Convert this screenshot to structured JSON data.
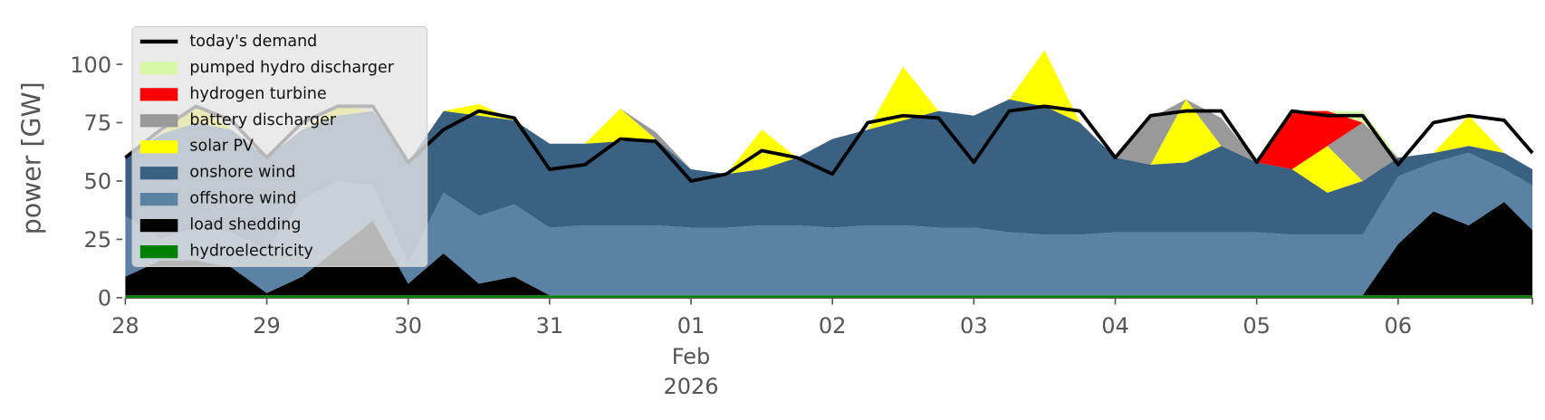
{
  "chart_data": {
    "type": "stacked-area",
    "ylabel": "power [GW]",
    "x": [
      0,
      0.25,
      0.5,
      0.75,
      1,
      1.25,
      1.5,
      1.75,
      2,
      2.25,
      2.5,
      2.75,
      3,
      3.25,
      3.5,
      3.75,
      4,
      4.25,
      4.5,
      4.75,
      5,
      5.25,
      5.5,
      5.75,
      6,
      6.25,
      6.5,
      6.75,
      7,
      7.25,
      7.5,
      7.75,
      8,
      8.25,
      8.5,
      8.75,
      9,
      9.25,
      9.5,
      9.75,
      9.95
    ],
    "xlim": [
      0,
      9.95
    ],
    "xticks": [
      {
        "value": 0,
        "label": "28"
      },
      {
        "value": 1,
        "label": "29"
      },
      {
        "value": 2,
        "label": "30"
      },
      {
        "value": 3,
        "label": "31"
      },
      {
        "value": 4,
        "label": "01"
      },
      {
        "value": 5,
        "label": "02"
      },
      {
        "value": 6,
        "label": "03"
      },
      {
        "value": 7,
        "label": "04"
      },
      {
        "value": 8,
        "label": "05"
      },
      {
        "value": 9,
        "label": "06"
      }
    ],
    "xtick_sublabels": [
      "Feb",
      "2026"
    ],
    "ylim": [
      0,
      118
    ],
    "yticks": [
      0,
      25,
      50,
      75,
      100
    ],
    "legend_loc": "upper left",
    "series": [
      {
        "name": "hydroelectricity",
        "color": "#008000",
        "values": [
          1,
          1,
          1,
          1,
          1,
          1,
          1,
          1,
          1,
          1,
          1,
          1,
          1,
          1,
          1,
          1,
          1,
          1,
          1,
          1,
          1,
          1,
          1,
          1,
          1,
          1,
          1,
          1,
          1,
          1,
          1,
          1,
          1,
          1,
          1,
          1,
          1,
          1,
          1,
          1,
          1
        ]
      },
      {
        "name": "load shedding",
        "color": "#000000",
        "values": [
          8,
          15,
          15,
          12,
          1,
          8,
          20,
          32,
          5,
          18,
          5,
          8,
          0,
          0,
          0,
          0,
          0,
          0,
          0,
          0,
          0,
          0,
          0,
          0,
          0,
          0,
          0,
          0,
          0,
          0,
          0,
          0,
          0,
          0,
          0,
          0,
          22,
          36,
          30,
          40,
          28
        ]
      },
      {
        "name": "offshore wind",
        "color": "#5b82a4",
        "values": [
          26,
          9,
          14,
          15,
          18,
          33,
          29,
          15,
          9,
          26,
          29,
          31,
          29,
          30,
          30,
          30,
          29,
          29,
          30,
          30,
          29,
          30,
          30,
          29,
          29,
          27,
          26,
          26,
          27,
          27,
          27,
          27,
          27,
          26,
          26,
          26,
          29,
          21,
          31,
          14,
          19
        ]
      },
      {
        "name": "onshore wind",
        "color": "#3b6182",
        "values": [
          25,
          45,
          45,
          44,
          40,
          30,
          28,
          32,
          43,
          35,
          43,
          36,
          36,
          35,
          36,
          37,
          25,
          23,
          24,
          29,
          38,
          41,
          45,
          50,
          48,
          57,
          55,
          48,
          32,
          29,
          30,
          37,
          30,
          28,
          18,
          23,
          8,
          4,
          3,
          7,
          7
        ]
      },
      {
        "name": "solar PV",
        "color": "#ffff00",
        "values": [
          0,
          0,
          8,
          0,
          0,
          0,
          4,
          0,
          0,
          0,
          5,
          0,
          0,
          0,
          14,
          0,
          0,
          0,
          17,
          0,
          0,
          0,
          23,
          0,
          0,
          0,
          24,
          0,
          0,
          0,
          27,
          0,
          0,
          0,
          20,
          0,
          0,
          0,
          13,
          0,
          0
        ]
      },
      {
        "name": "battery discharger",
        "color": "#999999",
        "values": [
          0,
          0,
          0,
          0,
          0,
          0,
          0,
          0,
          0,
          0,
          0,
          0,
          0,
          0,
          0,
          3,
          0,
          0,
          0,
          0,
          0,
          0,
          0,
          0,
          0,
          0,
          0,
          0,
          0,
          20,
          0,
          12,
          0,
          0,
          0,
          25,
          0,
          0,
          0,
          0,
          0
        ]
      },
      {
        "name": "hydrogen turbine",
        "color": "#ff0000",
        "values": [
          0,
          0,
          0,
          0,
          0,
          0,
          0,
          0,
          0,
          0,
          0,
          0,
          0,
          0,
          0,
          0,
          0,
          0,
          0,
          0,
          0,
          0,
          0,
          0,
          0,
          0,
          0,
          0,
          0,
          0,
          0,
          0,
          0,
          25,
          15,
          0,
          0,
          0,
          0,
          0,
          0
        ]
      },
      {
        "name": "pumped hydro discharger",
        "color": "#d9f7a8",
        "values": [
          0,
          0,
          0,
          0,
          0,
          0,
          0,
          0,
          0,
          0,
          0,
          0,
          0,
          0,
          0,
          0,
          0,
          0,
          0,
          0,
          0,
          0,
          0,
          0,
          0,
          0,
          0,
          0,
          0,
          0,
          0,
          0,
          0,
          0,
          0,
          5,
          0,
          0,
          0,
          0,
          0
        ]
      }
    ],
    "demand": {
      "name": "today's demand",
      "color": "#000000",
      "values": [
        60,
        72,
        82,
        76,
        60,
        75,
        82,
        82,
        58,
        72,
        80,
        77,
        55,
        57,
        68,
        67,
        50,
        53,
        63,
        60,
        53,
        75,
        78,
        77,
        58,
        80,
        82,
        80,
        60,
        78,
        80,
        80,
        58,
        80,
        78,
        78,
        57,
        75,
        78,
        76,
        62
      ]
    }
  }
}
